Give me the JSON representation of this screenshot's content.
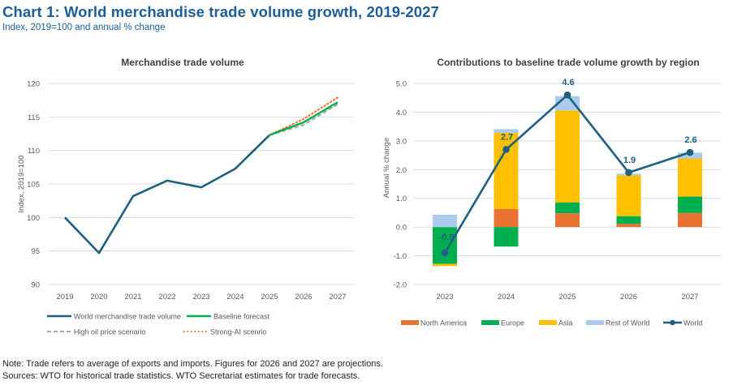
{
  "header": {
    "title": "Chart 1: World merchandise trade volume growth, 2019-2027",
    "subtitle": "Index, 2019=100 and annual % change"
  },
  "footer": {
    "note": "Note: Trade refers to average of exports and imports. Figures for 2026 and 2027 are projections.",
    "sources": "Sources: WTO for historical trade statistics. WTO Secretariat estimates for trade forecasts."
  },
  "colors": {
    "world": "#1f5f7f",
    "baseline": "#00b050",
    "high_oil": "#a6a6a6",
    "strong_ai": "#e97132",
    "north_america": "#e97132",
    "europe": "#00b050",
    "asia": "#ffc000",
    "rest_of_world": "#a9cbec",
    "grid": "#d9d9d9",
    "tick": "#595959",
    "title": "#404040"
  },
  "chart_data": [
    {
      "type": "line",
      "title": "Merchandise trade volume",
      "xlabel": "",
      "ylabel": "Index, 2019=100",
      "x": [
        "2019",
        "2020",
        "2021",
        "2022",
        "2023",
        "2024",
        "2025",
        "2026",
        "2027"
      ],
      "ylim": [
        90,
        120
      ],
      "yticks": [
        90,
        95,
        100,
        105,
        110,
        115,
        120
      ],
      "grid": true,
      "legend_position": "bottom",
      "series": [
        {
          "name": "World merchandise trade volume",
          "style": "solid",
          "values": [
            100,
            94.7,
            103.2,
            105.5,
            104.5,
            107.3,
            112.3,
            null,
            null
          ]
        },
        {
          "name": "Baseline forecast",
          "style": "solid",
          "values": [
            null,
            null,
            null,
            null,
            null,
            null,
            112.3,
            114.2,
            117.2
          ]
        },
        {
          "name": "High oil price scenario",
          "style": "dashed",
          "values": [
            null,
            null,
            null,
            null,
            null,
            null,
            112.3,
            113.8,
            116.9
          ]
        },
        {
          "name": "Strong-AI scenrio",
          "style": "dotted",
          "values": [
            null,
            null,
            null,
            null,
            null,
            null,
            112.3,
            114.7,
            117.9
          ]
        }
      ]
    },
    {
      "type": "bar",
      "stacked": true,
      "title": "Contributions to baseline trade volume growth by region",
      "xlabel": "",
      "ylabel": "Annual % change",
      "categories": [
        "2023",
        "2024",
        "2025",
        "2026",
        "2027"
      ],
      "ylim": [
        -2.0,
        5.0
      ],
      "yticks": [
        "-2.0",
        "-1.0",
        "0.0",
        "1.0",
        "2.0",
        "3.0",
        "4.0",
        "5.0"
      ],
      "grid": true,
      "legend_position": "bottom",
      "series": [
        {
          "name": "North America",
          "values": [
            0.0,
            0.63,
            0.48,
            0.11,
            0.49
          ]
        },
        {
          "name": "Europe",
          "values": [
            -1.28,
            -0.68,
            0.38,
            0.27,
            0.57
          ]
        },
        {
          "name": "Asia",
          "values": [
            -0.08,
            2.65,
            3.2,
            1.42,
            1.33
          ]
        },
        {
          "name": "Rest of World",
          "values": [
            0.43,
            0.13,
            0.5,
            0.06,
            0.2
          ]
        }
      ],
      "line": {
        "name": "World",
        "values": [
          -0.9,
          2.7,
          4.6,
          1.9,
          2.6
        ],
        "labels": [
          "-0.9",
          "2.7",
          "4.6",
          "1.9",
          "2.6"
        ]
      }
    }
  ]
}
